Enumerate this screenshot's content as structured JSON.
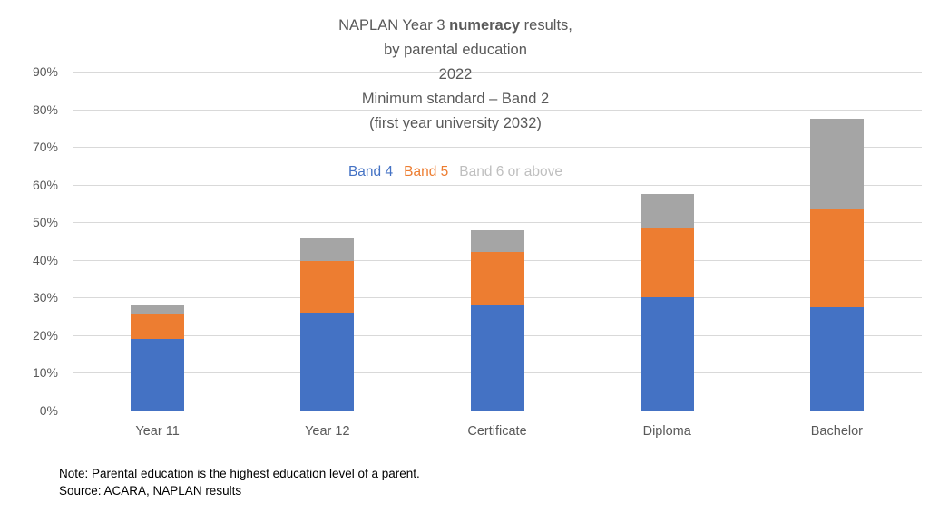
{
  "title": {
    "line1_prefix": "NAPLAN Year 3 ",
    "line1_bold": "numeracy",
    "line1_suffix": " results,",
    "line2": "by parental education",
    "line3": "2022",
    "line4": "Minimum standard – Band 2",
    "line5": "(first year university 2032)"
  },
  "legend": {
    "items": [
      {
        "label": "Band 4",
        "color": "#4472c4"
      },
      {
        "label": "Band 5",
        "color": "#ed7d31"
      },
      {
        "label": "Band 6 or above",
        "color": "#bfbfbf"
      }
    ]
  },
  "chart_data": {
    "type": "bar",
    "stacked": true,
    "categories": [
      "Year 11",
      "Year 12",
      "Certificate",
      "Diploma",
      "Bachelor"
    ],
    "series": [
      {
        "name": "Band 4",
        "color": "#4472c4",
        "values": [
          19.0,
          26.0,
          28.0,
          30.0,
          27.5
        ]
      },
      {
        "name": "Band 5",
        "color": "#ed7d31",
        "values": [
          6.5,
          13.6,
          14.0,
          18.4,
          25.8
        ]
      },
      {
        "name": "Band 6 or above",
        "color": "#a5a5a5",
        "values": [
          2.5,
          6.1,
          6.0,
          9.0,
          24.2
        ]
      }
    ],
    "totals": [
      28.0,
      45.7,
      48.0,
      57.4,
      77.5
    ],
    "title": "NAPLAN Year 3 numeracy results, by parental education 2022 Minimum standard – Band 2 (first year university 2032)",
    "xlabel": "",
    "ylabel": "",
    "ylim": [
      0,
      90
    ],
    "ytick_step": 10,
    "ytick_suffix": "%",
    "grid": true,
    "legend_position": "top-center"
  },
  "notes": {
    "line1": "Note: Parental education is the highest education level of a parent.",
    "line2": "Source: ACARA, NAPLAN results"
  },
  "colors": {
    "background": "#ffffff",
    "gridline": "#d9d9d9",
    "axis_baseline": "#bfbfbf",
    "axis_text": "#595959",
    "title_text": "#595959",
    "note_text": "#000000"
  }
}
